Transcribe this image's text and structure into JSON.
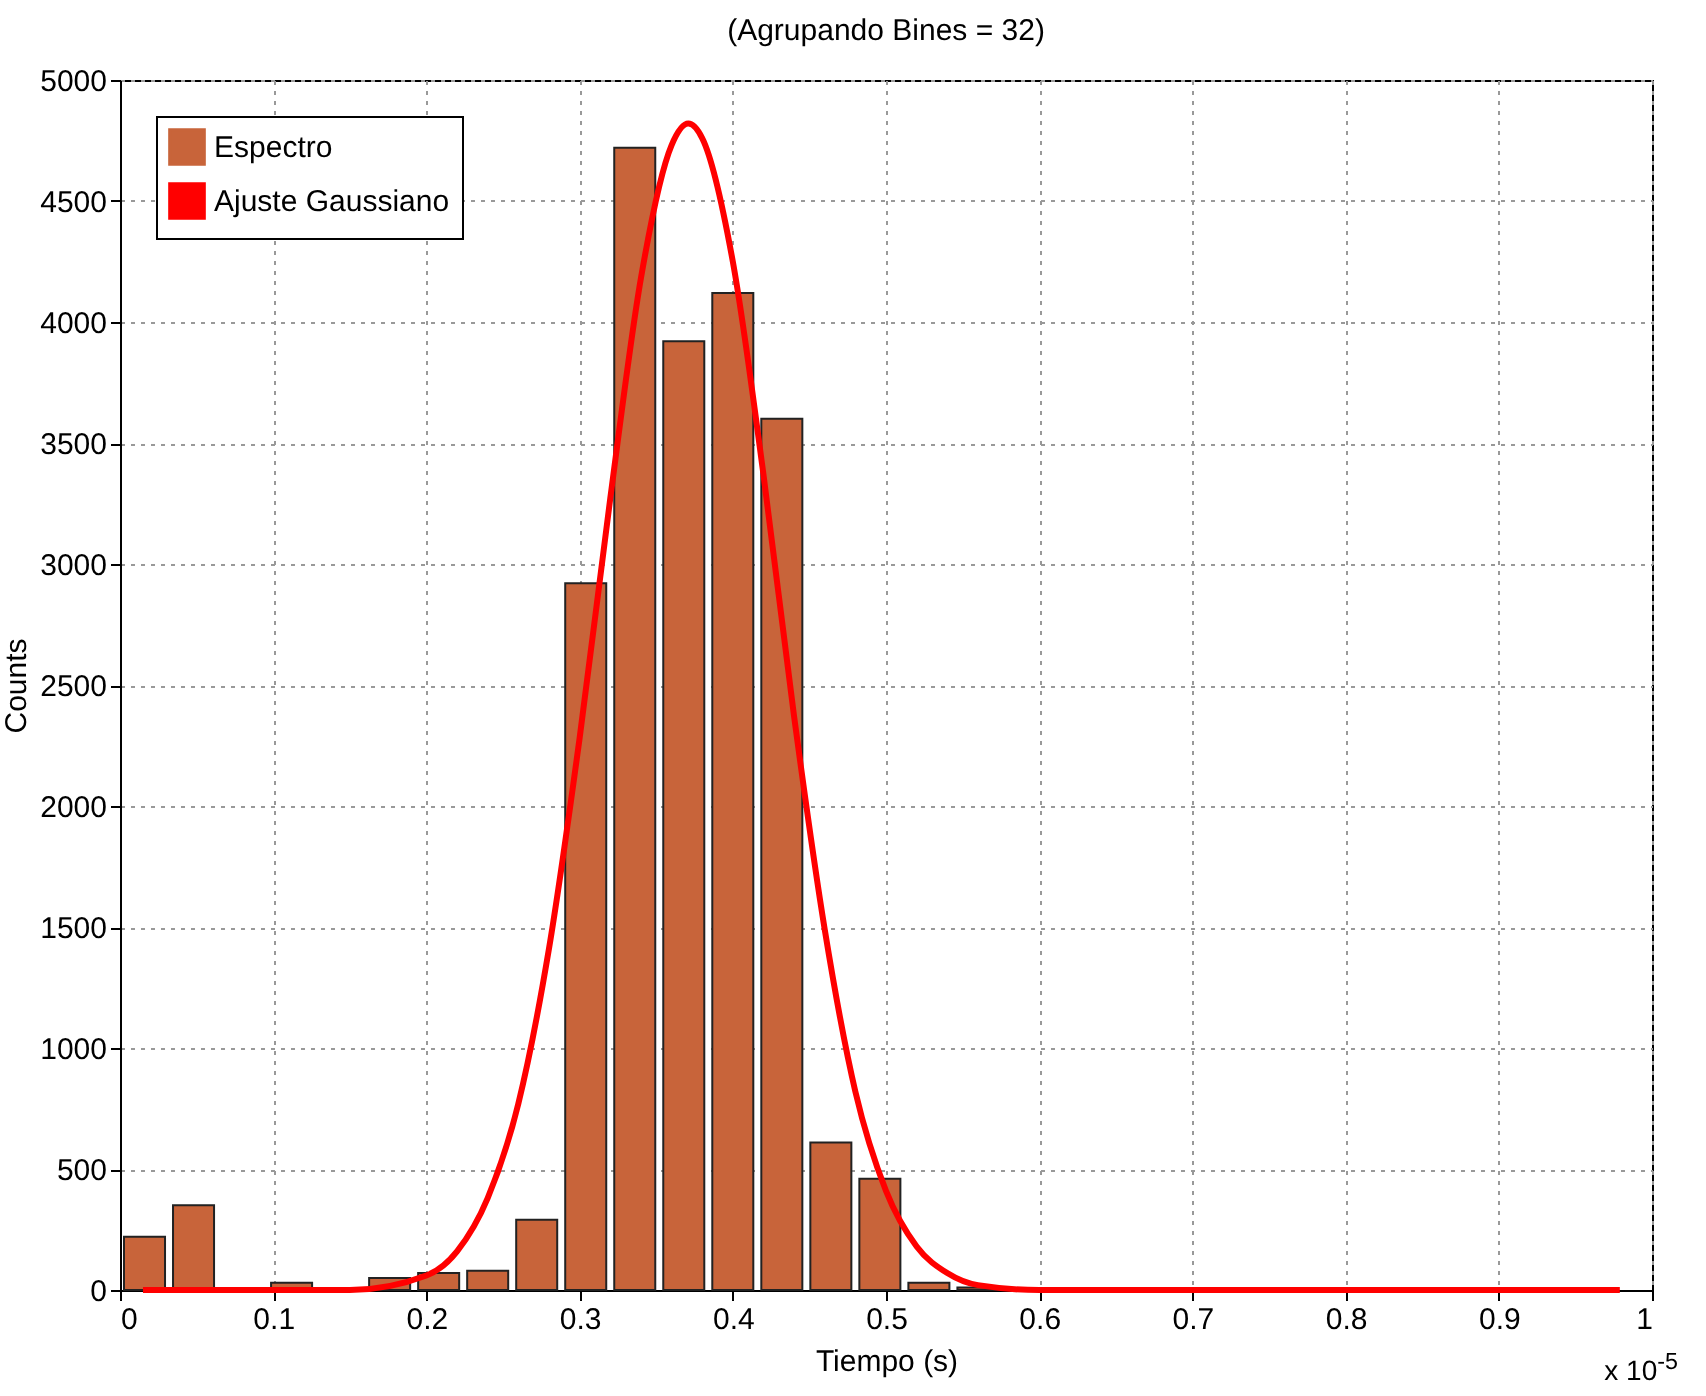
{
  "chart_data": {
    "type": "histogram",
    "title": "(Agrupando Bines = 32)",
    "xlabel": "Tiempo (s)",
    "ylabel": "Counts",
    "annotations": [
      "x 10$^{-5}$"
    ],
    "bins": [
      0,
      0.032,
      0.064,
      0.096,
      0.128,
      0.16,
      0.192,
      0.224,
      0.256,
      0.288,
      0.32,
      0.352,
      0.384,
      0.416,
      0.448,
      0.48,
      0.512,
      0.544,
      0.576,
      0.608,
      0.64,
      0.672,
      0.704,
      0.736,
      0.768,
      0.8,
      0.832,
      0.864,
      0.896,
      0.928,
      0.96,
      0.992
    ],
    "series": [
      {
        "name": "Espectro",
        "color": "#c8643a",
        "values": [
          220,
          350,
          0,
          30,
          0,
          50,
          70,
          80,
          290,
          2920,
          4720,
          3920,
          4120,
          3600,
          610,
          460,
          30,
          10,
          0,
          0,
          0,
          0,
          0,
          0,
          0,
          0,
          0,
          0,
          0,
          0,
          0
        ]
      },
      {
        "type": "line",
        "name": "Ajuste Gaussiano",
        "color": "#ff0000",
        "x": [
          0.015,
          0.15,
          0.2,
          0.22,
          0.24,
          0.26,
          0.28,
          0.3,
          0.32,
          0.34,
          0.36,
          0.371,
          0.38,
          0.4,
          0.42,
          0.44,
          0.46,
          0.48,
          0.5,
          0.52,
          0.54,
          0.56,
          0.6,
          0.7,
          0.8,
          0.979
        ],
        "values": [
          0,
          0,
          60,
          160,
          380,
          770,
          1410,
          2280,
          3270,
          4180,
          4730,
          4820,
          4760,
          4250,
          3370,
          2370,
          1490,
          820,
          410,
          180,
          70,
          20,
          0,
          0,
          0,
          0
        ]
      }
    ],
    "xlim": [
      0,
      1
    ],
    "xticks": [
      0,
      0.1,
      0.2,
      0.3,
      0.4,
      0.5,
      0.6,
      0.7,
      0.8,
      0.9,
      1
    ],
    "ylim": [
      0,
      5000
    ],
    "yticks": [
      0,
      500,
      1000,
      1500,
      2000,
      2500,
      3000,
      3500,
      4000,
      4500,
      5000
    ],
    "grid": true,
    "legend": "top left",
    "marker": "none",
    "line_style": "solid"
  }
}
